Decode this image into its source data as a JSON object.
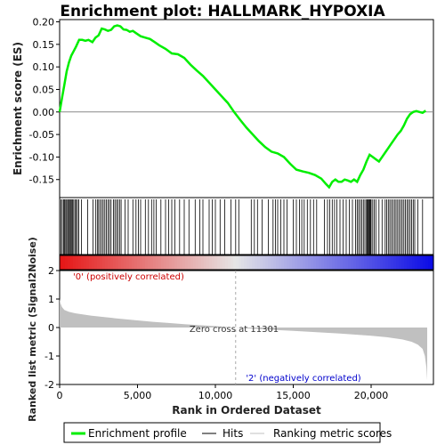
{
  "chart_data": {
    "type": "line",
    "title": "Enrichment plot: HALLMARK_HYPOXIA",
    "es_panel": {
      "ylabel": "Enrichment score (ES)",
      "ylim": [
        -0.19,
        0.205
      ],
      "yticks": [
        0.2,
        0.15,
        0.1,
        0.05,
        0.0,
        -0.05,
        -0.1,
        -0.15
      ],
      "ytick_labels": [
        "0.20",
        "0.15",
        "0.10",
        "0.05",
        "0.00",
        "-0.05",
        "-0.10",
        "-0.15"
      ],
      "color": "#00ee00",
      "x": [
        0,
        150,
        300,
        450,
        600,
        750,
        900,
        1050,
        1250,
        1450,
        1650,
        1850,
        2100,
        2300,
        2500,
        2700,
        2900,
        3100,
        3300,
        3500,
        3700,
        3900,
        4100,
        4300,
        4500,
        4700,
        4900,
        5200,
        5500,
        5800,
        6100,
        6400,
        6800,
        7200,
        7600,
        8000,
        8400,
        8800,
        9200,
        9600,
        10000,
        10400,
        10800,
        11200,
        11600,
        12000,
        12400,
        12800,
        13200,
        13600,
        14000,
        14400,
        14800,
        15200,
        15600,
        16000,
        16400,
        16800,
        17100,
        17300,
        17500,
        17700,
        17900,
        18100,
        18300,
        18500,
        18700,
        18900,
        19100,
        19300,
        19500,
        19700,
        19900,
        20100,
        20300,
        20500,
        20700,
        20900,
        21100,
        21300,
        21500,
        21700,
        21900,
        22100,
        22300,
        22500,
        22700,
        22900,
        23100,
        23300,
        23500
      ],
      "y": [
        0.0,
        0.03,
        0.06,
        0.09,
        0.11,
        0.125,
        0.135,
        0.145,
        0.16,
        0.16,
        0.158,
        0.16,
        0.155,
        0.165,
        0.17,
        0.185,
        0.183,
        0.18,
        0.182,
        0.19,
        0.192,
        0.19,
        0.183,
        0.182,
        0.178,
        0.18,
        0.175,
        0.168,
        0.165,
        0.162,
        0.155,
        0.148,
        0.14,
        0.13,
        0.128,
        0.12,
        0.105,
        0.092,
        0.08,
        0.065,
        0.05,
        0.035,
        0.02,
        0.0,
        -0.018,
        -0.035,
        -0.05,
        -0.065,
        -0.078,
        -0.088,
        -0.092,
        -0.1,
        -0.115,
        -0.128,
        -0.132,
        -0.135,
        -0.14,
        -0.148,
        -0.16,
        -0.167,
        -0.155,
        -0.15,
        -0.155,
        -0.155,
        -0.15,
        -0.152,
        -0.155,
        -0.15,
        -0.155,
        -0.14,
        -0.128,
        -0.11,
        -0.095,
        -0.1,
        -0.105,
        -0.11,
        -0.1,
        -0.09,
        -0.08,
        -0.07,
        -0.06,
        -0.05,
        -0.042,
        -0.03,
        -0.015,
        -0.005,
        0.0,
        0.002,
        0.0,
        -0.002,
        0.003
      ]
    },
    "hits_panel": {
      "hit_ranks": [
        80,
        170,
        250,
        320,
        390,
        450,
        520,
        580,
        640,
        700,
        760,
        830,
        900,
        980,
        1060,
        1140,
        1230,
        1400,
        1800,
        2150,
        2300,
        2420,
        2500,
        2600,
        2700,
        2800,
        2900,
        3000,
        3100,
        3200,
        3300,
        3450,
        3550,
        3650,
        3750,
        3850,
        3950,
        4200,
        4400,
        4700,
        4900,
        5050,
        5200,
        5500,
        5700,
        5900,
        6050,
        6200,
        6500,
        6800,
        7000,
        7200,
        7400,
        7700,
        8000,
        8300,
        8700,
        9000,
        9200,
        9600,
        9800,
        10000,
        10300,
        10600,
        11000,
        11300,
        11500,
        12300,
        12500,
        12700,
        13000,
        13400,
        13700,
        13850,
        14000,
        14200,
        14400,
        14600,
        15000,
        15200,
        15400,
        15550,
        15700,
        15900,
        16100,
        16300,
        16500,
        17000,
        17200,
        17350,
        17500,
        17650,
        17800,
        18000,
        18200,
        18400,
        18600,
        18800,
        19000,
        19100,
        19200,
        19300,
        19400,
        19500,
        19600,
        19700,
        19750,
        19800,
        19850,
        19900,
        19950,
        20000,
        20100,
        20200,
        20300,
        20500,
        20700,
        20900,
        21000,
        21100,
        21200,
        21300,
        21400,
        21500,
        21600,
        21700,
        21800,
        21900,
        22000,
        22100,
        22200,
        22300,
        22400,
        22500,
        22600,
        22700,
        22800,
        23000,
        23300
      ]
    },
    "metric_panel": {
      "ylabel": "Ranked list metric (Signal2Noise)",
      "ylim": [
        -2,
        2
      ],
      "yticks": [
        2,
        1,
        0,
        -1,
        -2
      ],
      "ytick_labels": [
        "2",
        "1",
        "0",
        "-1",
        "-2"
      ],
      "x": [
        0,
        50,
        150,
        300,
        600,
        1000,
        2000,
        3000,
        4000,
        5000,
        6000,
        7000,
        8000,
        9000,
        10000,
        11000,
        11301,
        12000,
        13000,
        14000,
        15000,
        16000,
        17000,
        18000,
        19000,
        20000,
        21000,
        22000,
        22600,
        23000,
        23300,
        23450,
        23550,
        23600
      ],
      "y": [
        1.0,
        0.85,
        0.72,
        0.62,
        0.55,
        0.5,
        0.42,
        0.36,
        0.3,
        0.25,
        0.2,
        0.16,
        0.12,
        0.08,
        0.05,
        0.01,
        0.0,
        -0.03,
        -0.06,
        -0.09,
        -0.12,
        -0.15,
        -0.18,
        -0.21,
        -0.25,
        -0.29,
        -0.34,
        -0.42,
        -0.5,
        -0.6,
        -0.75,
        -1.0,
        -1.4,
        -1.85
      ],
      "fill_color": "#c0c0c0",
      "zero_cross_label": "Zero cross at 11301",
      "zero_cross_rank": 11301,
      "pos_label": "'0' (positively correlated)",
      "neg_label": "'2' (negatively correlated)",
      "pos_color": "#cc0000",
      "neg_color": "#0000cc"
    },
    "xaxis": {
      "label": "Rank in Ordered Dataset",
      "xlim": [
        0,
        24000
      ],
      "ticks": [
        0,
        5000,
        10000,
        15000,
        20000
      ],
      "tick_labels": [
        "0",
        "5,000",
        "10,000",
        "15,000",
        "20,000"
      ]
    },
    "legend": {
      "placement": "bottom",
      "items": [
        {
          "label": "Enrichment profile",
          "color": "#00ee00",
          "kind": "thick-line"
        },
        {
          "label": "Hits",
          "color": "#000000",
          "kind": "line"
        },
        {
          "label": "Ranking metric scores",
          "color": "#c0c0c0",
          "kind": "line"
        }
      ]
    }
  }
}
